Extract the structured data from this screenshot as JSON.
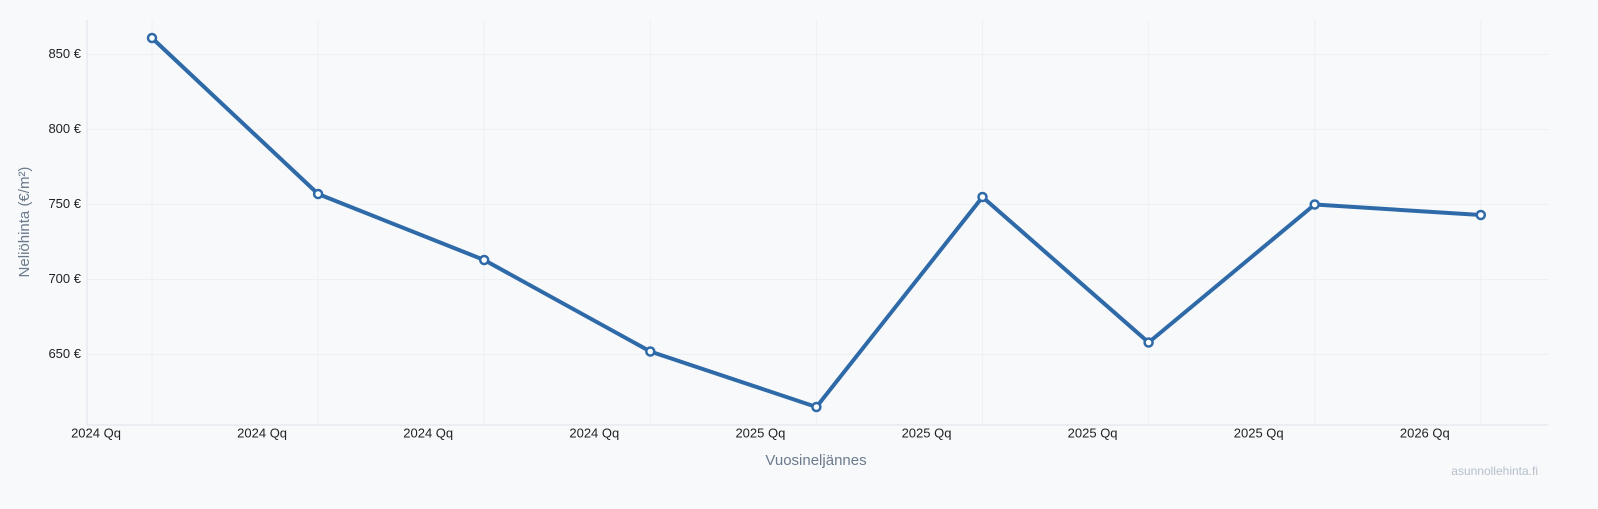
{
  "chart_data": {
    "type": "line",
    "x_label": "Vuosineljännes",
    "y_label": "Neliöhinta (€/m²)",
    "watermark": "asunnollehinta.fi",
    "categories": [
      "2024 Qq",
      "2024 Qq",
      "2024 Qq",
      "2024 Qq",
      "2025 Qq",
      "2025 Qq",
      "2025 Qq",
      "2025 Qq",
      "2026 Qq"
    ],
    "series": [
      {
        "color": "#2f6aa8",
        "values": [
          861,
          757,
          713,
          652,
          615,
          755,
          658,
          750,
          743
        ]
      }
    ],
    "ylim": [
      603,
      873
    ],
    "yticks": [
      {
        "value": 650,
        "label": "650 €"
      },
      {
        "value": 700,
        "label": "700 €"
      },
      {
        "value": 750,
        "label": "750 €"
      },
      {
        "value": 800,
        "label": "800 €"
      },
      {
        "value": 850,
        "label": "850 €"
      }
    ],
    "grid": true
  }
}
